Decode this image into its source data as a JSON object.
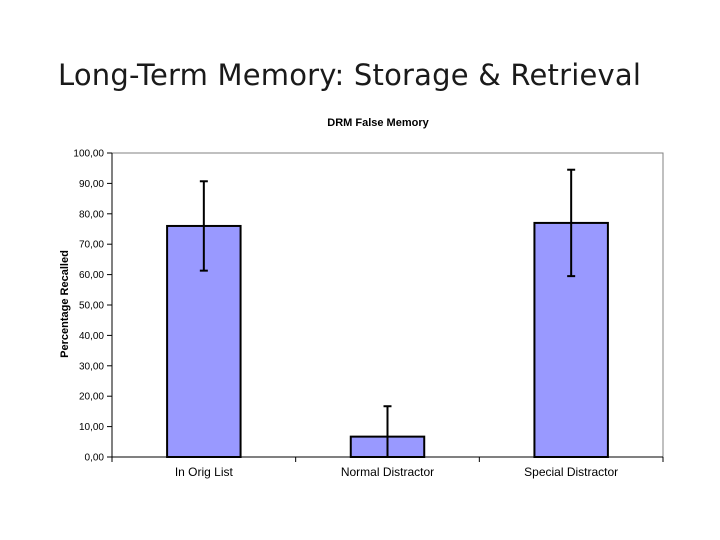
{
  "slide": {
    "title": "Long-Term Memory: Storage & Retrieval"
  },
  "chart_data": {
    "type": "bar",
    "title": "DRM False Memory",
    "xlabel": "",
    "ylabel": "Percentage Recalled",
    "categories": [
      "In Orig List",
      "Normal Distractor",
      "Special Distractor"
    ],
    "values": [
      76.0,
      6.7,
      77.0
    ],
    "error": [
      14.7,
      10.0,
      17.5
    ],
    "ylim": [
      0,
      100
    ],
    "yticks": [
      "0,00",
      "10,00",
      "20,00",
      "30,00",
      "40,00",
      "50,00",
      "60,00",
      "70,00",
      "80,00",
      "90,00",
      "100,00"
    ],
    "bar_color": "#9999ff",
    "grid": false,
    "legend": "none"
  }
}
